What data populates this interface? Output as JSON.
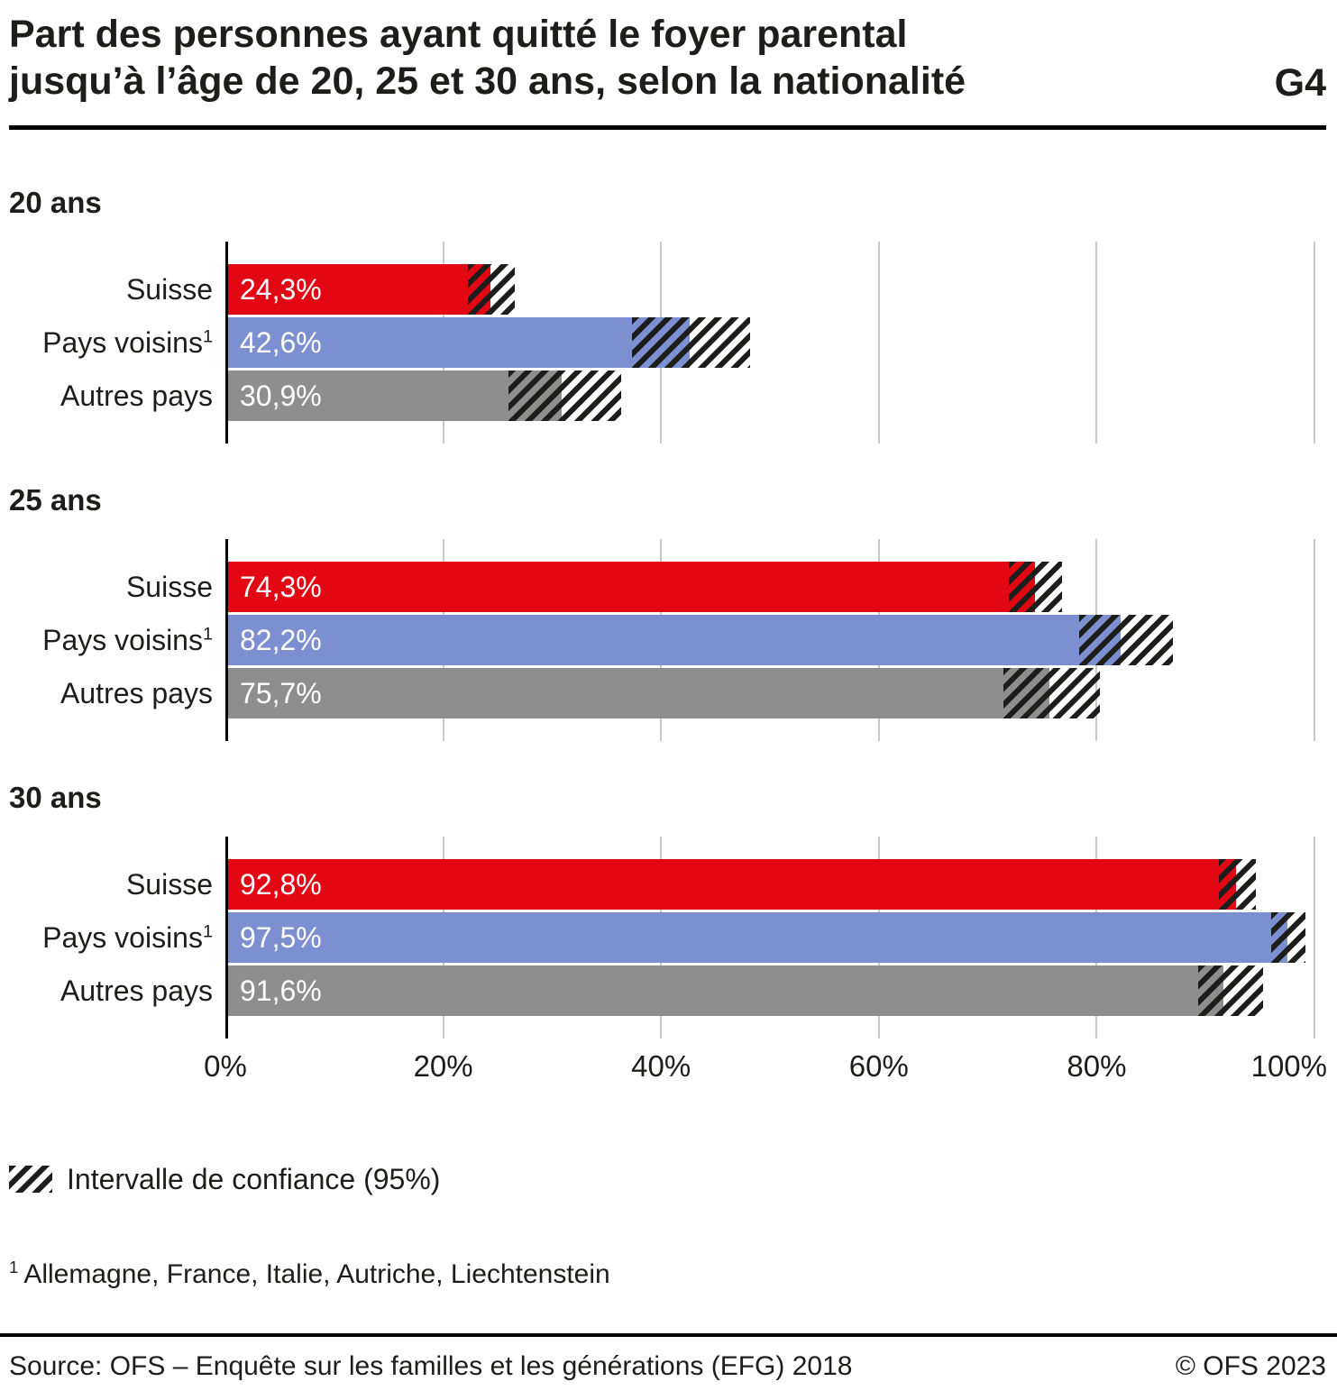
{
  "header": {
    "title_line1": "Part des personnes ayant quitté le foyer parental",
    "title_line2": "jusqu’à l’âge de 20, 25 et 30 ans, selon la nationalité",
    "figure_id": "G4"
  },
  "chart_data": {
    "type": "bar",
    "orientation": "horizontal",
    "title": "Part des personnes ayant quitté le foyer parental jusqu’à l’âge de 20, 25 et 30 ans, selon la nationalité",
    "unit": "%",
    "xlim": [
      0,
      100
    ],
    "x_ticks": [
      "0%",
      "20%",
      "40%",
      "60%",
      "80%",
      "100%"
    ],
    "x_tick_values": [
      0,
      20,
      40,
      60,
      80,
      100
    ],
    "grid": true,
    "colors": {
      "Suisse": "#e30613",
      "Pays voisins": "#7b8fd1",
      "Autres pays": "#8e8e8e"
    },
    "groups": [
      {
        "label": "20 ans",
        "bars": [
          {
            "category": "Suisse",
            "sup": "",
            "value": 24.3,
            "value_label": "24,3%",
            "ci": [
              22.3,
              26.6
            ]
          },
          {
            "category": "Pays voisins",
            "sup": "1",
            "value": 42.6,
            "value_label": "42,6%",
            "ci": [
              37.3,
              48.2
            ]
          },
          {
            "category": "Autres pays",
            "sup": "",
            "value": 30.9,
            "value_label": "30,9%",
            "ci": [
              26.0,
              36.3
            ]
          }
        ]
      },
      {
        "label": "25 ans",
        "bars": [
          {
            "category": "Suisse",
            "sup": "",
            "value": 74.3,
            "value_label": "74,3%",
            "ci": [
              71.9,
              76.8
            ]
          },
          {
            "category": "Pays voisins",
            "sup": "1",
            "value": 82.2,
            "value_label": "82,2%",
            "ci": [
              78.4,
              87.0
            ]
          },
          {
            "category": "Autres pays",
            "sup": "",
            "value": 75.7,
            "value_label": "75,7%",
            "ci": [
              71.4,
              80.3
            ]
          }
        ]
      },
      {
        "label": "30 ans",
        "bars": [
          {
            "category": "Suisse",
            "sup": "",
            "value": 92.8,
            "value_label": "92,8%",
            "ci": [
              91.2,
              94.6
            ]
          },
          {
            "category": "Pays voisins",
            "sup": "1",
            "value": 97.5,
            "value_label": "97,5%",
            "ci": [
              96.0,
              99.2
            ]
          },
          {
            "category": "Autres pays",
            "sup": "",
            "value": 91.6,
            "value_label": "91,6%",
            "ci": [
              89.3,
              95.3
            ]
          }
        ]
      }
    ]
  },
  "legend": {
    "label": "Intervalle de confiance (95%)"
  },
  "footnote": {
    "marker": "1",
    "text": "Allemagne, France, Italie, Autriche, Liechtenstein"
  },
  "footer": {
    "source": "Source: OFS – Enquête sur les familles et les générations (EFG) 2018",
    "copyright": "© OFS 2023"
  }
}
